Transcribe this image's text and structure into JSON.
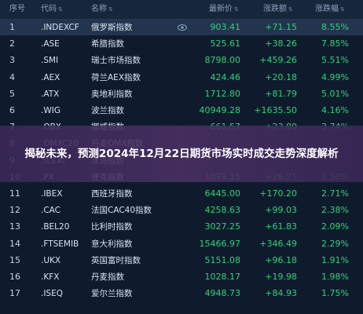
{
  "columns": {
    "index": "序号",
    "code": "代码",
    "name": "名称",
    "price": "最新价",
    "change": "涨跌额",
    "change_pct": "涨跌幅"
  },
  "rows": [
    {
      "index": "1",
      "code": ".INDEXCF",
      "name": "俄罗斯指数",
      "price": "903.41",
      "change": "+71.15",
      "pct": "8.55%"
    },
    {
      "index": "2",
      "code": ".ASE",
      "name": "希腊指数",
      "price": "525.61",
      "change": "+38.26",
      "pct": "7.85%"
    },
    {
      "index": "3",
      "code": ".SMI",
      "name": "瑞士市场指数",
      "price": "8798.00",
      "change": "+459.26",
      "pct": "5.51%"
    },
    {
      "index": "4",
      "code": ".AEX",
      "name": "荷兰AEX指数",
      "price": "424.46",
      "change": "+20.18",
      "pct": "4.99%"
    },
    {
      "index": "5",
      "code": ".ATX",
      "name": "奥地利指数",
      "price": "1712.80",
      "change": "+81.79",
      "pct": "5.01%"
    },
    {
      "index": "6",
      "code": ".WIG",
      "name": "波兰指数",
      "price": "40949.28",
      "change": "+1635.50",
      "pct": "4.16%"
    },
    {
      "index": "7",
      "code": ".OBX",
      "name": "挪威指数",
      "price": "661.57",
      "change": "+23.80",
      "pct": "3.74%"
    },
    {
      "index": "8",
      "code": ".OMXC20",
      "name": "丹麦OMX指数",
      "price": "",
      "change": "",
      "pct": ""
    },
    {
      "index": "9",
      "code": ".ICEXI",
      "name": "冰岛指数",
      "price": "",
      "change": "",
      "pct": ""
    },
    {
      "index": "10",
      "code": ".PX",
      "name": "捷克指数",
      "price": "1079.15",
      "change": "+26.21",
      "pct": "2.50%"
    },
    {
      "index": "11",
      "code": ".IBEX",
      "name": "西班牙指数",
      "price": "6445.00",
      "change": "+170.20",
      "pct": "2.71%"
    },
    {
      "index": "12",
      "code": ".CAC",
      "name": "法国CAC40指数",
      "price": "4258.63",
      "change": "+99.03",
      "pct": "2.38%"
    },
    {
      "index": "13",
      "code": ".BEL20",
      "name": "比利时指数",
      "price": "3027.25",
      "change": "+61.83",
      "pct": "2.09%"
    },
    {
      "index": "14",
      "code": ".FTSEMIB",
      "name": "意大利指数",
      "price": "15466.97",
      "change": "+346.49",
      "pct": "2.29%"
    },
    {
      "index": "15",
      "code": ".UKX",
      "name": "英国富时指数",
      "price": "5151.08",
      "change": "+96.18",
      "pct": "1.91%"
    },
    {
      "index": "16",
      "code": ".KFX",
      "name": "丹麦指数",
      "price": "1028.17",
      "change": "+19.98",
      "pct": "1.98%"
    },
    {
      "index": "17",
      "code": ".ISEQ",
      "name": "爱尔兰指数",
      "price": "4948.73",
      "change": "+84.93",
      "pct": "1.75%"
    }
  ],
  "banner": {
    "text": "揭秘未来，预测2024年12月22日期货市场实时成交走势深度解析"
  },
  "colors": {
    "up": "#2fd27a",
    "background": "#0f1b2d",
    "header_bg": "#16263b",
    "banner": "#4a3064"
  },
  "icons": {
    "row_action": "eye-icon",
    "sort": "sort-arrows-icon"
  }
}
